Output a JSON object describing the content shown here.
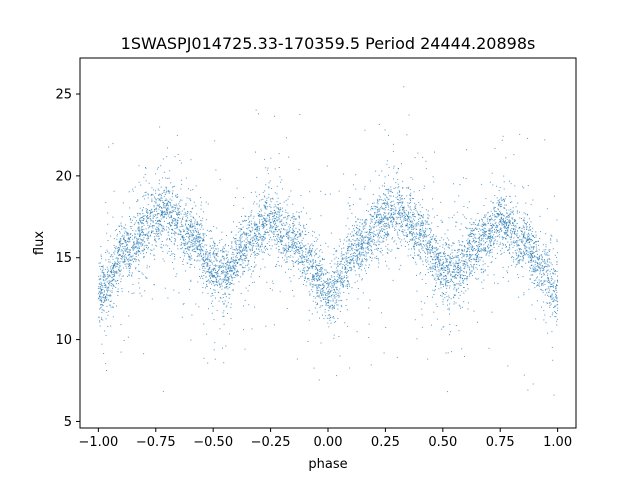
{
  "chart_data": {
    "type": "scatter",
    "title": "1SWASPJ014725.33-170359.5 Period 24444.20898s",
    "xlabel": "phase",
    "ylabel": "flux",
    "xlim": [
      -1.08,
      1.08
    ],
    "ylim": [
      4.6,
      27.2
    ],
    "xticks": [
      -1.0,
      -0.75,
      -0.5,
      -0.25,
      0.0,
      0.25,
      0.5,
      0.75,
      1.0
    ],
    "xtick_labels": [
      "−1.00",
      "−0.75",
      "−0.50",
      "−0.25",
      "0.00",
      "0.25",
      "0.50",
      "0.75",
      "1.00"
    ],
    "yticks": [
      5,
      10,
      15,
      20,
      25
    ],
    "ytick_labels": [
      "5",
      "10",
      "15",
      "20",
      "25"
    ],
    "grid": false,
    "legend": "none",
    "marker_color": "#1f77b4",
    "series": [
      {
        "description_of_trend": [
          {
            "x": -1.0,
            "y": 12.7
          },
          {
            "x": -0.875,
            "y": 15.5
          },
          {
            "x": -0.75,
            "y": 17.5
          },
          {
            "x": -0.7,
            "y": 17.8
          },
          {
            "x": -0.6,
            "y": 16.5
          },
          {
            "x": -0.5,
            "y": 14.3
          },
          {
            "x": -0.45,
            "y": 14.0
          },
          {
            "x": -0.35,
            "y": 15.8
          },
          {
            "x": -0.25,
            "y": 17.3
          },
          {
            "x": -0.15,
            "y": 16.0
          },
          {
            "x": -0.05,
            "y": 14.0
          },
          {
            "x": 0.0,
            "y": 12.7
          },
          {
            "x": 0.125,
            "y": 15.5
          },
          {
            "x": 0.25,
            "y": 17.5
          },
          {
            "x": 0.3,
            "y": 17.8
          },
          {
            "x": 0.4,
            "y": 16.5
          },
          {
            "x": 0.5,
            "y": 14.3
          },
          {
            "x": 0.55,
            "y": 14.0
          },
          {
            "x": 0.65,
            "y": 15.8
          },
          {
            "x": 0.75,
            "y": 17.3
          },
          {
            "x": 0.85,
            "y": 16.0
          },
          {
            "x": 0.95,
            "y": 14.0
          },
          {
            "x": 1.0,
            "y": 12.7
          }
        ]
      }
    ]
  }
}
